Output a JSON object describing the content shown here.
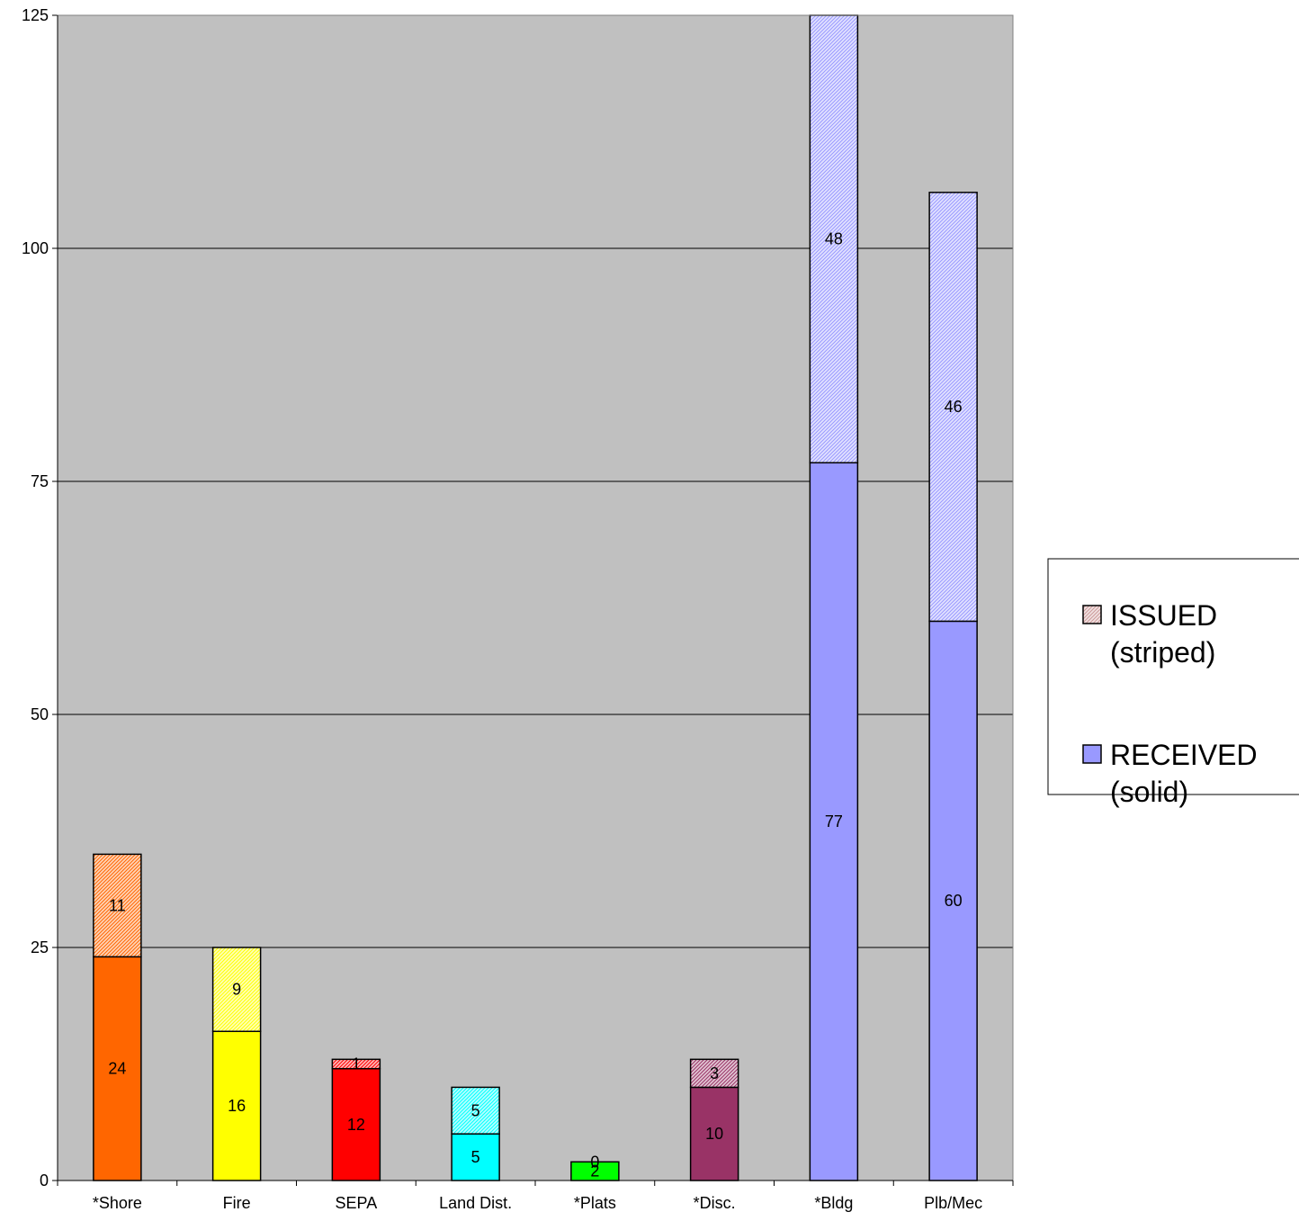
{
  "chart_data": {
    "type": "bar",
    "stacked": true,
    "categories": [
      "*Shore",
      "Fire",
      "SEPA",
      "Land Dist.",
      "*Plats",
      "*Disc.",
      "*Bldg",
      "Plb/Mec"
    ],
    "category_colors": [
      "#FF6600",
      "#FFFF00",
      "#FF0000",
      "#00FFFF",
      "#00FF00",
      "#993366",
      "#9999FF",
      "#9999FF"
    ],
    "series": [
      {
        "name": "RECEIVED (solid)",
        "pattern": "solid",
        "values": [
          24,
          16,
          12,
          5,
          2,
          10,
          77,
          60
        ]
      },
      {
        "name": "ISSUED (striped)",
        "pattern": "striped",
        "values": [
          11,
          9,
          1,
          5,
          0,
          3,
          48,
          46
        ]
      }
    ],
    "title": "",
    "xlabel": "",
    "ylabel": "",
    "ylim": [
      0,
      125
    ],
    "yticks": [
      0,
      25,
      50,
      75,
      100,
      125
    ],
    "grid": true,
    "plot_background": "#C0C0C0",
    "legend": {
      "position": "right",
      "entries": [
        {
          "line1": "ISSUED",
          "line2": "(striped)",
          "swatch_color": "#CC9999",
          "pattern": "striped"
        },
        {
          "line1": "RECEIVED",
          "line2": "(solid)",
          "swatch_color": "#9999FF",
          "pattern": "solid"
        }
      ]
    }
  }
}
